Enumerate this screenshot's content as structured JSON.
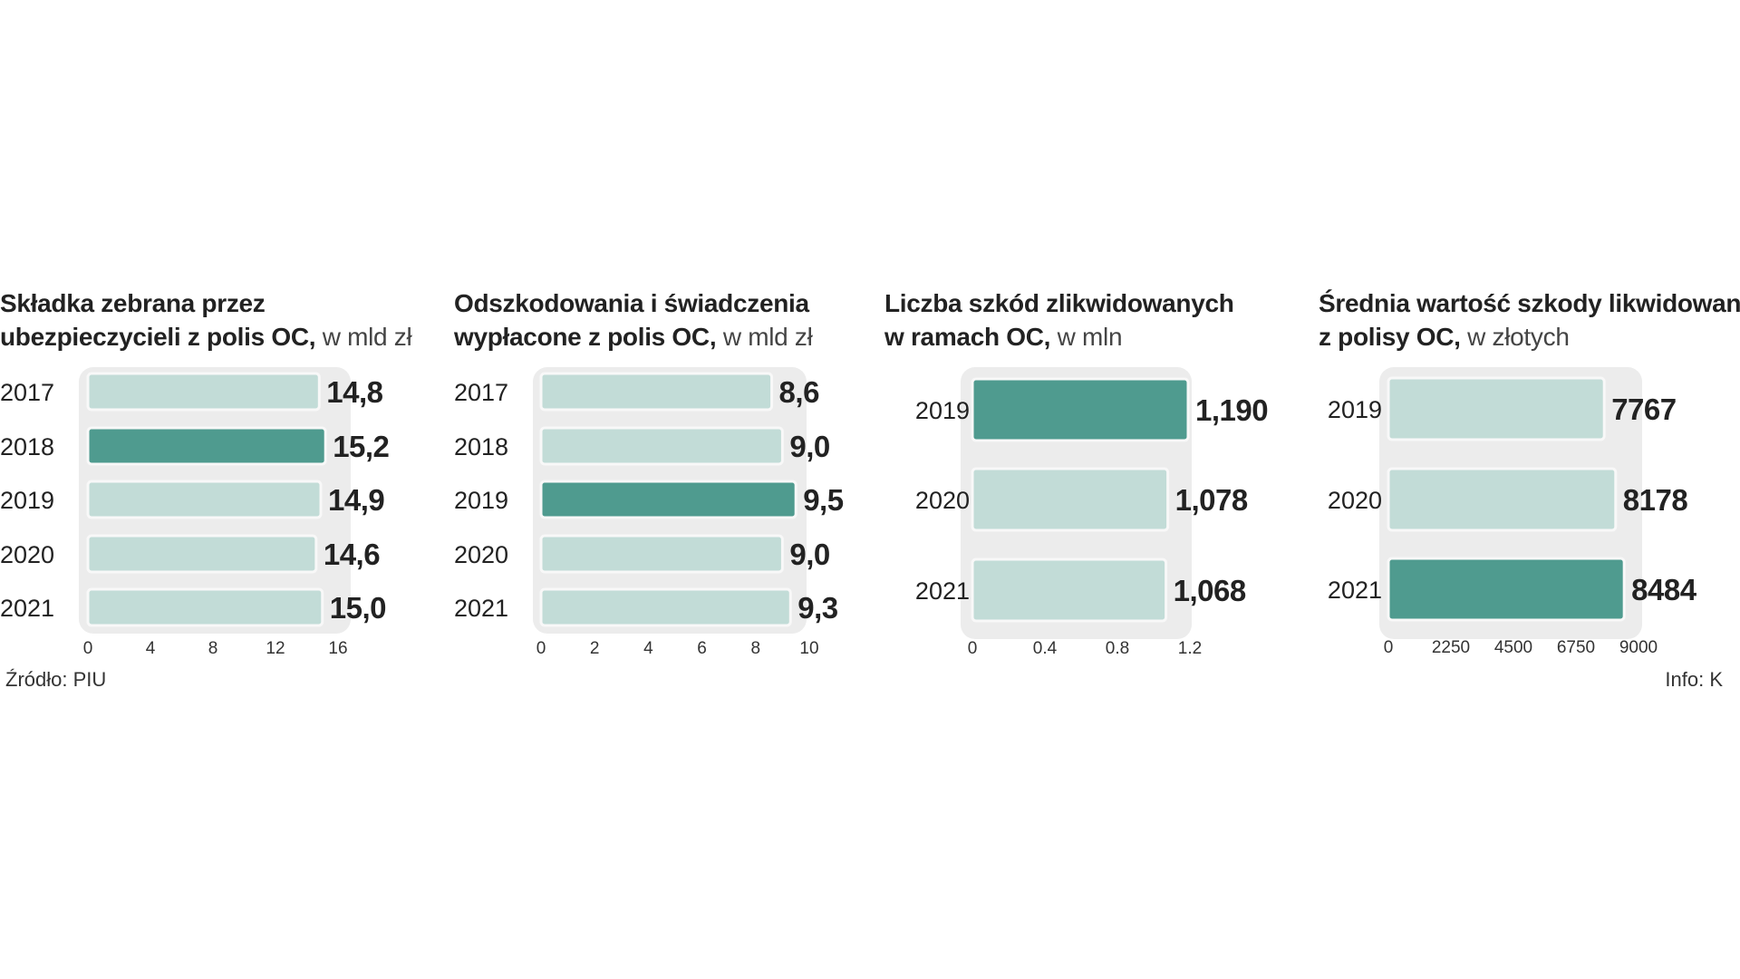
{
  "colors": {
    "highlight": "#4f9b8f",
    "normal": "#c2dcd7",
    "track": "#ececec",
    "bar_stroke": "#f8f8f8",
    "text": "#222222"
  },
  "source": "Źródło: PIU",
  "credit": "Info: K",
  "chart_data": [
    {
      "type": "bar",
      "orientation": "horizontal",
      "title_bold_line1": "Składka zebrana przez",
      "title_bold_line2": "ubezpieczycieli z polis OC,",
      "title_unit": "w mld zł",
      "categories": [
        "2017",
        "2018",
        "2019",
        "2020",
        "2021"
      ],
      "values": [
        14.8,
        15.2,
        14.9,
        14.6,
        15.0
      ],
      "value_labels": [
        "14,8",
        "15,2",
        "14,9",
        "14,6",
        "15,0"
      ],
      "highlight_index": 1,
      "xlim": [
        0,
        16
      ],
      "ticks": [
        0,
        4,
        8,
        12,
        16
      ],
      "tick_labels": [
        "0",
        "4",
        "8",
        "12",
        "16"
      ]
    },
    {
      "type": "bar",
      "orientation": "horizontal",
      "title_bold_line1": "Odszkodowania i świadczenia",
      "title_bold_line2": "wypłacone z polis OC,",
      "title_unit": "w mld zł",
      "categories": [
        "2017",
        "2018",
        "2019",
        "2020",
        "2021"
      ],
      "values": [
        8.6,
        9.0,
        9.5,
        9.0,
        9.3
      ],
      "value_labels": [
        "8,6",
        "9,0",
        "9,5",
        "9,0",
        "9,3"
      ],
      "highlight_index": 2,
      "xlim": [
        0,
        10
      ],
      "ticks": [
        0,
        2,
        4,
        6,
        8,
        10
      ],
      "tick_labels": [
        "0",
        "2",
        "4",
        "6",
        "8",
        "10"
      ]
    },
    {
      "type": "bar",
      "orientation": "horizontal",
      "title_bold_line1": "Liczba szkód zlikwidowanych",
      "title_bold_line2": "w ramach OC,",
      "title_unit": "w mln",
      "categories": [
        "2019",
        "2020",
        "2021"
      ],
      "values": [
        1.19,
        1.078,
        1.068
      ],
      "value_labels": [
        "1,190",
        "1,078",
        "1,068"
      ],
      "highlight_index": 0,
      "xlim": [
        0,
        1.2
      ],
      "ticks": [
        0,
        0.4,
        0.8,
        1.2
      ],
      "tick_labels": [
        "0",
        "0.4",
        "0.8",
        "1.2"
      ]
    },
    {
      "type": "bar",
      "orientation": "horizontal",
      "title_bold_line1": "Średnia wartość szkody likwidowanej",
      "title_bold_line2": "z polisy OC,",
      "title_unit": "w złotych",
      "categories": [
        "2019",
        "2020",
        "2021"
      ],
      "values": [
        7767,
        8178,
        8484
      ],
      "value_labels": [
        "7767",
        "8178",
        "8484"
      ],
      "highlight_index": 2,
      "xlim": [
        0,
        9000
      ],
      "ticks": [
        0,
        2250,
        4500,
        6750,
        9000
      ],
      "tick_labels": [
        "0",
        "2250",
        "4500",
        "6750",
        "9000"
      ]
    }
  ]
}
